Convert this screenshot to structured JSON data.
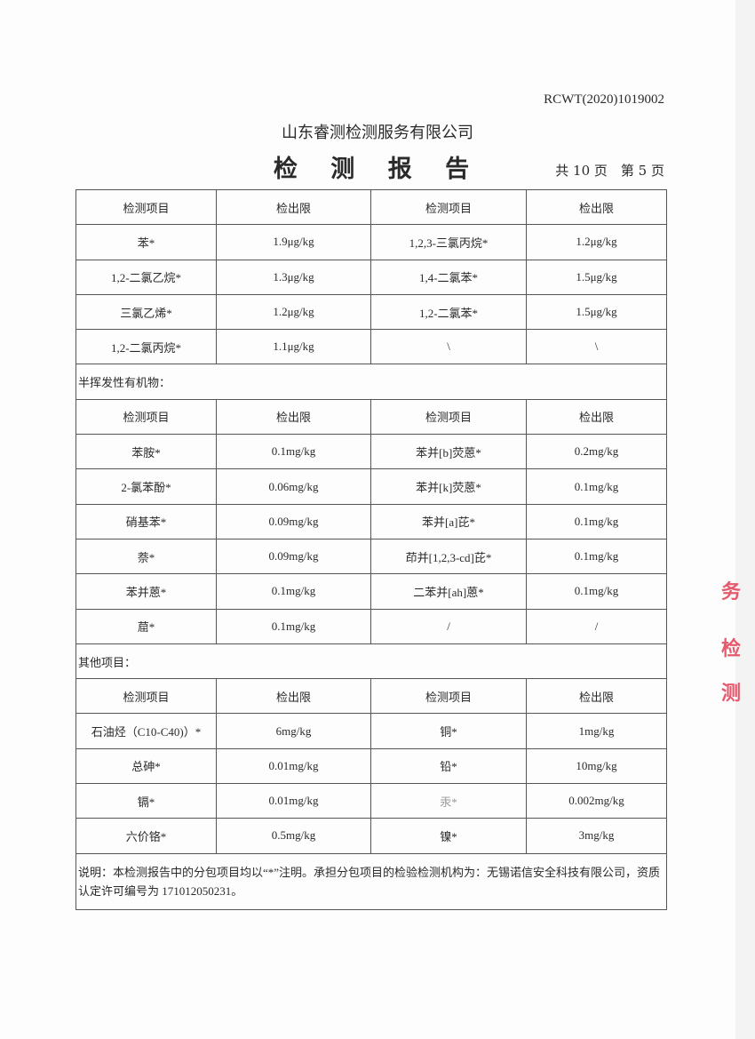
{
  "header": {
    "doc_number": "RCWT(2020)1019002",
    "company": "山东睿测检测服务有限公司",
    "title": "检 测 报 告",
    "pages": "共 10 页　第 5 页"
  },
  "col_headers": [
    "检测项目",
    "检出限",
    "检测项目",
    "检出限"
  ],
  "section1": {
    "rows": [
      [
        "苯*",
        "1.9μg/kg",
        "1,2,3-三氯丙烷*",
        "1.2μg/kg"
      ],
      [
        "1,2-二氯乙烷*",
        "1.3μg/kg",
        "1,4-二氯苯*",
        "1.5μg/kg"
      ],
      [
        "三氯乙烯*",
        "1.2μg/kg",
        "1,2-二氯苯*",
        "1.5μg/kg"
      ],
      [
        "1,2-二氯丙烷*",
        "1.1μg/kg",
        "\\",
        "\\"
      ]
    ]
  },
  "section2": {
    "title": "半挥发性有机物：",
    "rows": [
      [
        "苯胺*",
        "0.1mg/kg",
        "苯并[b]荧蒽*",
        "0.2mg/kg"
      ],
      [
        "2-氯苯酚*",
        "0.06mg/kg",
        "苯并[k]荧蒽*",
        "0.1mg/kg"
      ],
      [
        "硝基苯*",
        "0.09mg/kg",
        "苯并[a]芘*",
        "0.1mg/kg"
      ],
      [
        "萘*",
        "0.09mg/kg",
        "茚并[1,2,3-cd]芘*",
        "0.1mg/kg"
      ],
      [
        "苯并蒽*",
        "0.1mg/kg",
        "二苯并[ah]蒽*",
        "0.1mg/kg"
      ],
      [
        "䓛*",
        "0.1mg/kg",
        "/",
        "/"
      ]
    ]
  },
  "section3": {
    "title": "其他项目：",
    "rows": [
      [
        "石油烃（C10-C40)）*",
        "6mg/kg",
        "铜*",
        "1mg/kg"
      ],
      [
        "总砷*",
        "0.01mg/kg",
        "铅*",
        "10mg/kg"
      ],
      [
        "镉*",
        "0.01mg/kg",
        "汞*",
        "0.002mg/kg"
      ],
      [
        "六价铬*",
        "0.5mg/kg",
        "镍*",
        "3mg/kg"
      ]
    ]
  },
  "note": "说明：本检测报告中的分包项目均以“*”注明。承担分包项目的检验检测机构为：无锡诺信安全科技有限公司，资质认定许可编号为 171012050231。",
  "stamp": {
    "color": "#e0334a",
    "fragments": [
      "务",
      "检",
      "测"
    ]
  }
}
